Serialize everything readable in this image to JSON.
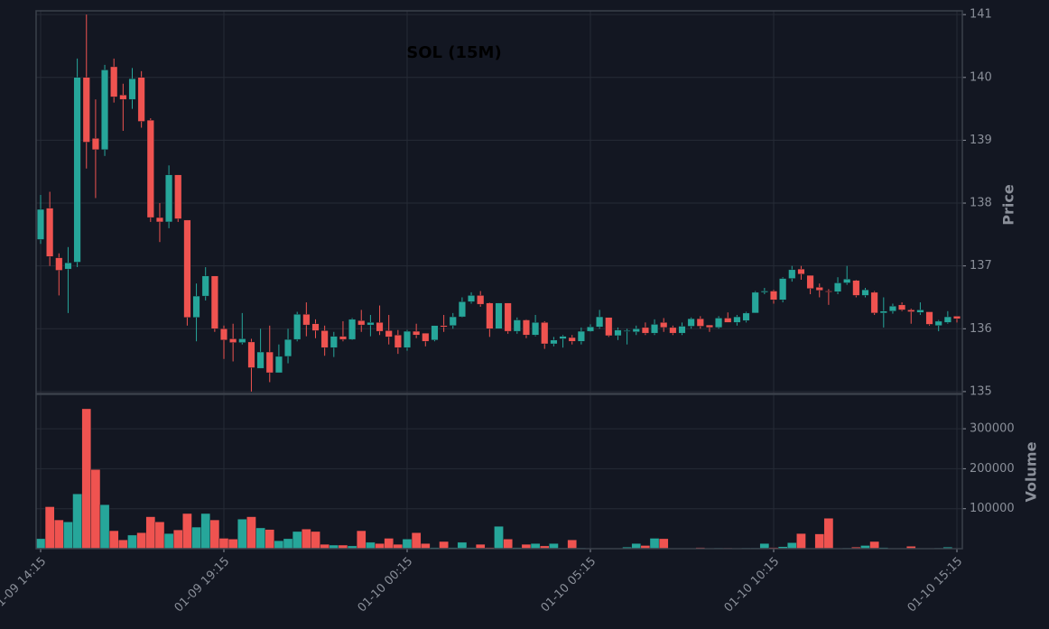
{
  "chart_data": {
    "type": "candlestick",
    "title": "SOL (15M)",
    "y_label": "Price",
    "up_color": "#26a69a",
    "down_color": "#ef5350",
    "grid": true,
    "categories": [
      "01-09 14:15",
      null,
      null,
      null,
      null,
      null,
      null,
      null,
      null,
      null,
      null,
      null,
      null,
      null,
      null,
      null,
      null,
      null,
      null,
      null,
      "01-09 19:15",
      null,
      null,
      null,
      null,
      null,
      null,
      null,
      null,
      null,
      null,
      null,
      null,
      null,
      null,
      null,
      null,
      null,
      null,
      null,
      "01-10 00:15",
      null,
      null,
      null,
      null,
      null,
      null,
      null,
      null,
      null,
      null,
      null,
      null,
      null,
      null,
      null,
      null,
      null,
      null,
      null,
      "01-10 05:15",
      null,
      null,
      null,
      null,
      null,
      null,
      null,
      null,
      null,
      null,
      null,
      null,
      null,
      null,
      null,
      null,
      null,
      null,
      null,
      "01-10 10:15",
      null,
      null,
      null,
      null,
      null,
      null,
      null,
      null,
      null,
      null,
      null,
      null,
      null,
      null,
      null,
      null,
      null,
      null,
      null,
      "01-10 15:15"
    ],
    "open": [
      137.42,
      137.92,
      137.13,
      136.95,
      137.06,
      140.0,
      139.03,
      138.85,
      140.17,
      139.72,
      139.65,
      140.0,
      139.32,
      137.77,
      137.7,
      138.45,
      137.73,
      136.18,
      136.52,
      136.84,
      136.0,
      135.84,
      135.78,
      135.79,
      135.37,
      135.63,
      135.3,
      135.56,
      135.83,
      136.23,
      136.08,
      135.97,
      135.7,
      135.88,
      135.83,
      136.13,
      136.06,
      136.1,
      135.97,
      135.9,
      135.7,
      135.96,
      135.93,
      135.82,
      136.05,
      136.05,
      136.19,
      136.43,
      136.53,
      136.41,
      136.0,
      136.41,
      135.96,
      136.14,
      135.9,
      136.1,
      135.76,
      135.84,
      135.86,
      135.8,
      135.96,
      136.03,
      136.18,
      135.89,
      135.96,
      135.95,
      136.02,
      135.93,
      136.1,
      136.02,
      135.93,
      136.04,
      136.16,
      136.06,
      136.02,
      136.17,
      136.1,
      136.13,
      136.25,
      136.58,
      136.6,
      136.46,
      136.8,
      136.95,
      136.85,
      136.66,
      136.6,
      136.59,
      136.73,
      136.77,
      136.53,
      136.58,
      136.25,
      136.28,
      136.38,
      136.3,
      136.26,
      136.27,
      136.05,
      136.1,
      136.2
    ],
    "high": [
      138.13,
      138.18,
      137.2,
      137.3,
      140.3,
      141.0,
      139.65,
      140.2,
      140.3,
      139.9,
      140.15,
      140.1,
      139.35,
      138.0,
      138.6,
      138.45,
      137.73,
      136.72,
      136.98,
      136.84,
      136.05,
      136.08,
      136.25,
      135.84,
      136.0,
      136.05,
      135.75,
      136.0,
      136.27,
      136.42,
      136.15,
      136.05,
      135.95,
      136.12,
      136.17,
      136.3,
      136.22,
      136.37,
      136.22,
      135.98,
      135.98,
      136.08,
      135.93,
      136.05,
      136.22,
      136.25,
      136.5,
      136.58,
      136.6,
      136.42,
      136.41,
      136.41,
      136.18,
      136.15,
      136.22,
      136.12,
      135.87,
      135.9,
      135.9,
      136.02,
      136.07,
      136.3,
      136.18,
      136.02,
      136.0,
      136.05,
      136.1,
      136.15,
      136.17,
      136.05,
      136.1,
      136.18,
      136.2,
      136.06,
      136.2,
      136.26,
      136.22,
      136.27,
      136.6,
      136.65,
      136.62,
      136.82,
      137.0,
      137.0,
      136.85,
      136.72,
      136.63,
      136.82,
      137.0,
      136.78,
      136.65,
      136.6,
      136.5,
      136.4,
      136.42,
      136.32,
      136.42,
      136.27,
      136.14,
      136.28,
      136.2
    ],
    "low": [
      137.35,
      137.0,
      136.53,
      136.25,
      136.98,
      138.55,
      138.08,
      138.75,
      139.6,
      139.15,
      139.5,
      139.2,
      137.7,
      137.38,
      137.6,
      137.7,
      136.05,
      135.8,
      136.45,
      135.95,
      135.52,
      135.48,
      135.75,
      135.0,
      135.37,
      135.15,
      135.3,
      135.45,
      135.8,
      135.88,
      135.85,
      135.57,
      135.55,
      135.8,
      135.82,
      135.95,
      135.88,
      135.9,
      135.75,
      135.6,
      135.65,
      135.85,
      135.72,
      135.8,
      135.95,
      136.0,
      136.18,
      136.4,
      136.35,
      135.87,
      136.0,
      135.92,
      135.92,
      135.85,
      135.88,
      135.68,
      135.72,
      135.7,
      135.75,
      135.75,
      135.95,
      136.0,
      135.87,
      135.82,
      135.75,
      135.9,
      135.9,
      135.9,
      135.95,
      135.9,
      135.9,
      136.0,
      136.0,
      135.95,
      136.0,
      136.1,
      136.05,
      136.1,
      136.25,
      136.55,
      136.4,
      136.42,
      136.75,
      136.78,
      136.55,
      136.5,
      136.38,
      136.55,
      136.7,
      136.5,
      136.5,
      136.22,
      136.02,
      136.24,
      136.28,
      136.08,
      136.22,
      136.05,
      135.96,
      136.08,
      136.1
    ],
    "close": [
      137.9,
      137.15,
      136.93,
      137.05,
      140.0,
      138.97,
      138.85,
      140.12,
      139.69,
      139.65,
      139.98,
      139.3,
      137.77,
      137.7,
      138.45,
      137.75,
      136.18,
      136.52,
      136.84,
      136.0,
      135.82,
      135.78,
      135.84,
      135.38,
      135.63,
      135.3,
      135.56,
      135.83,
      136.23,
      136.06,
      135.97,
      135.7,
      135.88,
      135.83,
      136.15,
      136.06,
      136.1,
      135.96,
      135.87,
      135.7,
      135.96,
      135.9,
      135.8,
      136.05,
      136.03,
      136.19,
      136.43,
      136.53,
      136.39,
      136.0,
      136.41,
      135.96,
      136.14,
      135.9,
      136.1,
      135.76,
      135.82,
      135.88,
      135.8,
      135.96,
      136.03,
      136.19,
      135.89,
      135.98,
      135.97,
      136.0,
      135.93,
      136.07,
      136.02,
      135.93,
      136.04,
      136.16,
      136.04,
      136.02,
      136.17,
      136.1,
      136.19,
      136.25,
      136.58,
      136.6,
      136.46,
      136.8,
      136.94,
      136.87,
      136.64,
      136.61,
      136.59,
      136.73,
      136.79,
      136.53,
      136.62,
      136.25,
      136.28,
      136.36,
      136.3,
      136.27,
      136.3,
      136.07,
      136.12,
      136.19,
      136.16
    ],
    "ylim": [
      134.97,
      141.06
    ],
    "yticks": [
      135,
      136,
      137,
      138,
      139,
      140,
      141
    ],
    "volume": {
      "label": "Volume",
      "ylim": [
        0,
        386000
      ],
      "yticks": [
        100000,
        200000,
        300000
      ],
      "values": [
        25000,
        105000,
        72000,
        67000,
        137000,
        350000,
        198000,
        110000,
        45000,
        22000,
        34000,
        40000,
        80000,
        67000,
        38000,
        47000,
        88000,
        54000,
        88000,
        72000,
        26000,
        24000,
        74000,
        80000,
        52000,
        48000,
        20000,
        25000,
        43000,
        49000,
        43000,
        11000,
        9000,
        9000,
        7000,
        45000,
        16000,
        13000,
        26000,
        11000,
        24000,
        40000,
        13000,
        3000,
        18000,
        3000,
        16000,
        3000,
        11000,
        3000,
        56000,
        24000,
        3000,
        11000,
        13000,
        7000,
        13000,
        2000,
        22000,
        2000,
        1000,
        1000,
        1000,
        1000,
        4000,
        13000,
        8000,
        26000,
        25000,
        1000,
        1000,
        1000,
        3000,
        1000,
        2000,
        2000,
        1000,
        2000,
        2000,
        13000,
        3000,
        5000,
        15000,
        38000,
        1000,
        37000,
        76000,
        1000,
        2000,
        4000,
        8000,
        18000,
        3000,
        1000,
        1000,
        6000,
        1000,
        1000,
        2000,
        4000,
        1000
      ]
    }
  }
}
